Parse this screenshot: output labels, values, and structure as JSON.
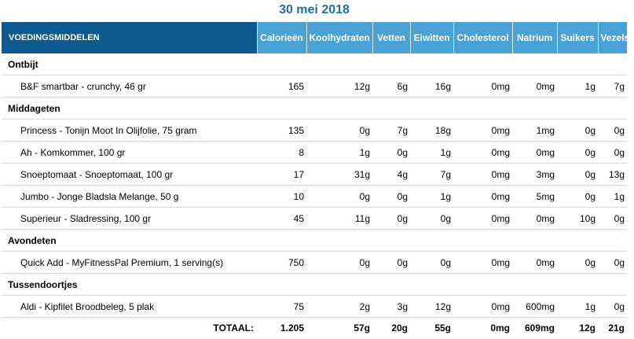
{
  "title": "30 mei 2018",
  "columns": [
    "VOEDINGSMIDDELEN",
    "Calorieën",
    "Koolhydraten",
    "Vetten",
    "Eiwitten",
    "Cholesterol",
    "Natrium",
    "Suikers",
    "Vezels"
  ],
  "meals": [
    {
      "name": "Ontbijt",
      "items": [
        {
          "food": "B&F smartbar - crunchy, 46 gr",
          "values": [
            "165",
            "12g",
            "6g",
            "16g",
            "0mg",
            "0mg",
            "1g",
            "7g"
          ]
        }
      ]
    },
    {
      "name": "Middageten",
      "items": [
        {
          "food": "Princess - Tonijn Moot In Olijfolie, 75 gram",
          "values": [
            "135",
            "0g",
            "7g",
            "18g",
            "0mg",
            "1mg",
            "0g",
            "0g"
          ]
        },
        {
          "food": "Ah - Komkommer, 100 gr",
          "values": [
            "8",
            "1g",
            "0g",
            "1g",
            "0mg",
            "0mg",
            "0g",
            "0g"
          ]
        },
        {
          "food": "Snoeptomaat - Snoeptomaat, 100 gr",
          "values": [
            "17",
            "31g",
            "4g",
            "7g",
            "0mg",
            "3mg",
            "0g",
            "13g"
          ]
        },
        {
          "food": "Jumbo - Jonge Bladsla Melange, 50 g",
          "values": [
            "10",
            "0g",
            "0g",
            "1g",
            "0mg",
            "5mg",
            "0g",
            "1g"
          ]
        },
        {
          "food": "Superieur - Sladressing, 100 gr",
          "values": [
            "45",
            "11g",
            "0g",
            "0g",
            "0mg",
            "0mg",
            "10g",
            "0g"
          ]
        }
      ]
    },
    {
      "name": "Avondeten",
      "items": [
        {
          "food": "Quick Add - MyFitnessPal Premium, 1 serving(s)",
          "values": [
            "750",
            "0g",
            "0g",
            "0g",
            "0mg",
            "0mg",
            "0g",
            "0g"
          ]
        }
      ]
    },
    {
      "name": "Tussendoortjes",
      "items": [
        {
          "food": "Aldi - Kipfilet Broodbeleg, 5 plak",
          "values": [
            "75",
            "2g",
            "3g",
            "12g",
            "0mg",
            "600mg",
            "1g",
            "0g"
          ]
        }
      ]
    }
  ],
  "totals": {
    "label": "TOTAAL:",
    "values": [
      "1.205",
      "57g",
      "20g",
      "55g",
      "0mg",
      "609mg",
      "12g",
      "21g"
    ]
  },
  "colors": {
    "header_dark": "#0c5a8f",
    "header_light": "#4aa1d5",
    "title": "#1f6ea5"
  }
}
